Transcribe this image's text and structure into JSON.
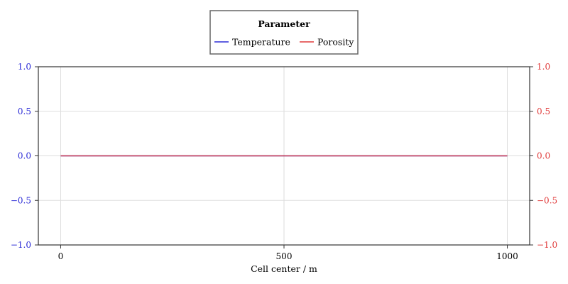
{
  "chart_data": {
    "type": "line",
    "xlabel": "Cell center / m",
    "ylabel": "",
    "y2label": "",
    "xlim": [
      -50,
      1050
    ],
    "ylim": [
      -1.0,
      1.0
    ],
    "y2lim": [
      -1.0,
      1.0
    ],
    "x_ticks": [
      0,
      500,
      1000
    ],
    "x_tick_labels": [
      "0",
      "500",
      "1000"
    ],
    "y_ticks": [
      -1.0,
      -0.5,
      0.0,
      0.5,
      1.0
    ],
    "y_tick_labels": [
      "−1.0",
      "−0.5",
      "0.0",
      "0.5",
      "1.0"
    ],
    "y2_ticks": [
      -1.0,
      -0.5,
      0.0,
      0.5,
      1.0
    ],
    "y2_tick_labels": [
      "−1.0",
      "−0.5",
      "0.0",
      "0.5",
      "1.0"
    ],
    "grid": true,
    "legend": {
      "title": "Parameter",
      "placement": "top-center"
    },
    "series": [
      {
        "name": "Temperature",
        "axis": "left",
        "color": "#2b2bd6",
        "x": [
          0,
          1000
        ],
        "y": [
          0.0,
          0.0
        ]
      },
      {
        "name": "Porosity",
        "axis": "right",
        "color": "#e03a3a",
        "x": [
          0,
          1000
        ],
        "y": [
          0.0,
          0.0
        ]
      }
    ],
    "left_axis_color": "#2b2bd6",
    "right_axis_color": "#e03a3a"
  }
}
